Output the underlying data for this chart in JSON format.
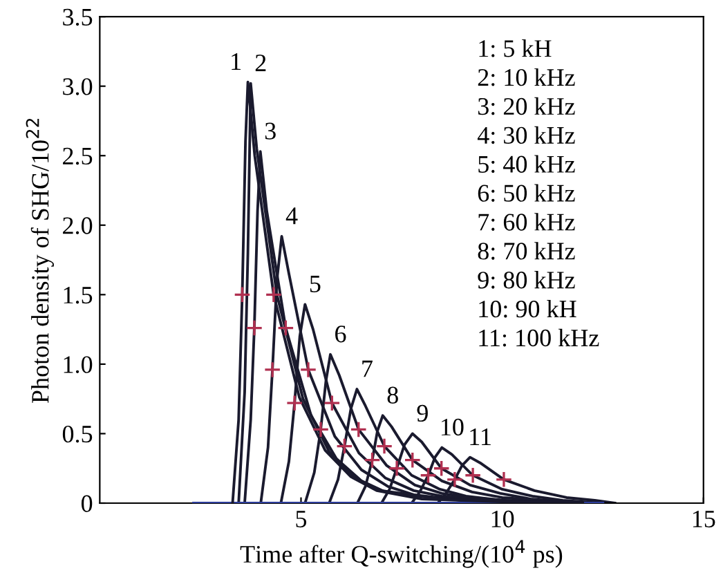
{
  "chart_data": {
    "type": "line",
    "xlabel": "Time after Q-switching/(10$^{4}$ ps)",
    "ylabel": "Photon density of SHG/10$^{22}$",
    "xlim": [
      0,
      15
    ],
    "xticks": [
      5,
      10,
      15
    ],
    "ylim": [
      0,
      3.5
    ],
    "yticks": [
      0,
      0.5,
      {
        "value": 1,
        "label": "1.0"
      },
      1.5,
      {
        "value": 2,
        "label": "2.0"
      },
      2.5,
      {
        "value": 3,
        "label": "3.0"
      },
      3.5
    ],
    "grid": false,
    "legend": false,
    "series": [
      {
        "color": "#3040a0",
        "x": [
          2.33,
          12.5
        ],
        "values": [
          0,
          0
        ]
      },
      {
        "color": "#1a1a2e",
        "x": [
          3.3,
          3.45,
          3.54,
          3.62,
          3.68,
          3.85,
          4.32,
          4.96,
          5.6,
          6.24,
          6.88,
          8,
          10,
          12
        ],
        "values": [
          0,
          0.6,
          1.5,
          2.6,
          3.03,
          2.5,
          1.5,
          0.76,
          0.38,
          0.19,
          0.09,
          0.03,
          0.01,
          0
        ]
      },
      {
        "color": "#1a1a2e",
        "x": [
          3.45,
          3.6,
          3.68,
          3.75,
          3.9,
          4.4,
          5.05,
          5.7,
          6.35,
          7,
          8.5,
          10.5,
          12
        ],
        "values": [
          0,
          0.8,
          1.8,
          3.02,
          2.55,
          1.5,
          0.75,
          0.37,
          0.18,
          0.09,
          0.03,
          0.01,
          0
        ]
      },
      {
        "color": "#1a1a2e",
        "x": [
          3.6,
          3.75,
          3.84,
          3.92,
          3.99,
          4.15,
          4.62,
          5.25,
          5.88,
          6.5,
          7.1,
          8.5,
          10.5,
          12
        ],
        "values": [
          0,
          0.6,
          1.26,
          2.1,
          2.53,
          2.1,
          1.26,
          0.63,
          0.32,
          0.16,
          0.08,
          0.03,
          0.01,
          0
        ]
      },
      {
        "color": "#1a1a2e",
        "x": [
          4.0,
          4.18,
          4.29,
          4.4,
          4.52,
          4.7,
          5.18,
          5.84,
          6.5,
          7.16,
          7.8,
          9,
          12
        ],
        "values": [
          0,
          0.4,
          0.96,
          1.6,
          1.92,
          1.65,
          0.96,
          0.48,
          0.24,
          0.12,
          0.06,
          0.02,
          0
        ]
      },
      {
        "color": "#1a1a2e",
        "x": [
          4.5,
          4.7,
          4.84,
          4.97,
          5.1,
          5.3,
          5.77,
          6.44,
          7.1,
          7.8,
          8.5,
          10,
          12
        ],
        "values": [
          0,
          0.3,
          0.72,
          1.2,
          1.43,
          1.25,
          0.72,
          0.36,
          0.18,
          0.09,
          0.05,
          0.01,
          0
        ]
      },
      {
        "color": "#1a1a2e",
        "x": [
          5.1,
          5.33,
          5.49,
          5.62,
          5.73,
          5.95,
          6.43,
          7.13,
          7.83,
          8.5,
          9.2,
          10.5,
          12
        ],
        "values": [
          0,
          0.22,
          0.53,
          0.88,
          1.07,
          0.92,
          0.53,
          0.27,
          0.13,
          0.07,
          0.04,
          0.01,
          0
        ]
      },
      {
        "color": "#1a1a2e",
        "x": [
          5.7,
          5.92,
          6.08,
          6.24,
          6.39,
          6.6,
          7.07,
          7.75,
          8.45,
          9.1,
          10,
          12.2
        ],
        "values": [
          0,
          0.17,
          0.41,
          0.68,
          0.82,
          0.7,
          0.41,
          0.2,
          0.1,
          0.05,
          0.02,
          0
        ]
      },
      {
        "color": "#1a1a2e",
        "x": [
          6.4,
          6.6,
          6.77,
          6.9,
          7.03,
          7.25,
          7.77,
          8.5,
          9.25,
          10,
          11,
          12.3
        ],
        "values": [
          0,
          0.12,
          0.31,
          0.52,
          0.63,
          0.55,
          0.31,
          0.16,
          0.08,
          0.04,
          0.02,
          0
        ]
      },
      {
        "color": "#1a1a2e",
        "x": [
          7.0,
          7.2,
          7.38,
          7.57,
          7.77,
          8.0,
          8.49,
          9.2,
          9.95,
          10.7,
          11.5,
          12.4
        ],
        "values": [
          0,
          0.1,
          0.25,
          0.42,
          0.5,
          0.44,
          0.25,
          0.13,
          0.07,
          0.03,
          0.01,
          0
        ]
      },
      {
        "color": "#1a1a2e",
        "x": [
          7.75,
          7.95,
          8.16,
          8.33,
          8.5,
          8.75,
          9.27,
          10,
          10.75,
          11.5,
          12.5
        ],
        "values": [
          0,
          0.08,
          0.2,
          0.33,
          0.4,
          0.35,
          0.2,
          0.1,
          0.05,
          0.02,
          0
        ]
      },
      {
        "color": "#1a1a2e",
        "x": [
          8.4,
          8.6,
          8.82,
          9.0,
          9.2,
          9.45,
          10.04,
          10.8,
          11.6,
          12.3,
          12.8
        ],
        "values": [
          0,
          0.07,
          0.17,
          0.27,
          0.33,
          0.29,
          0.17,
          0.09,
          0.04,
          0.02,
          0
        ]
      },
      {
        "type": "scatter",
        "marker": "cross",
        "color": "#b03050",
        "x": [
          3.54,
          4.32,
          3.84,
          4.62,
          4.29,
          5.18,
          4.84,
          5.77,
          5.49,
          6.43,
          6.08,
          7.07,
          6.77,
          7.77,
          7.38,
          8.49,
          8.16,
          9.27,
          8.82,
          10.04
        ],
        "values": [
          1.5,
          1.5,
          1.26,
          1.26,
          0.96,
          0.96,
          0.72,
          0.72,
          0.53,
          0.53,
          0.41,
          0.41,
          0.31,
          0.31,
          0.25,
          0.25,
          0.2,
          0.2,
          0.17,
          0.17
        ]
      }
    ],
    "annotations": [
      "1",
      "2",
      "3",
      "4",
      "5",
      "6",
      "7",
      "8",
      "9",
      "10",
      "11",
      "1: 5 kH",
      "2: 10 kHz",
      "3: 20 kHz",
      "4: 30 kHz",
      "5: 40 kHz",
      "6: 50 kHz",
      "7: 60 kHz",
      "8: 70 kHz",
      "9: 80 kHz",
      "10: 90 kH",
      "11: 100 kHz"
    ]
  }
}
